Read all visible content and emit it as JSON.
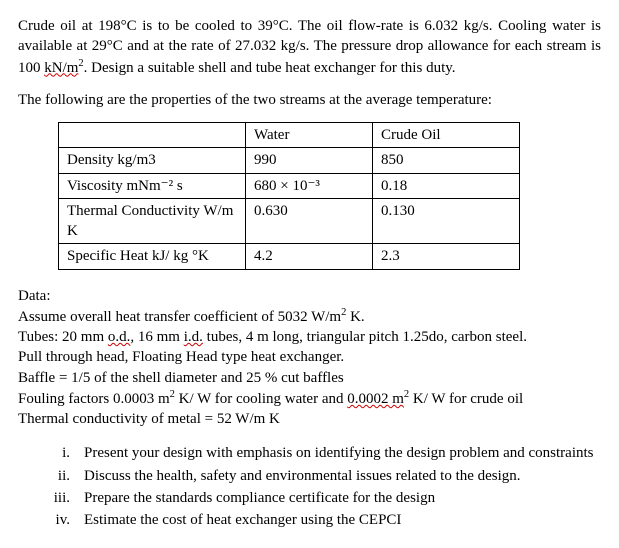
{
  "problem": {
    "p1": "Crude oil at 198°C is to be cooled to 39°C. The oil flow-rate is 6.032 kg/s. Cooling water is available at 29°C and at the rate of 27.032 kg/s. The pressure drop allowance for each stream is 100 ",
    "p1_unit": "kN/m",
    "p1_tail": ". Design a suitable shell and tube heat exchanger for this duty.",
    "p2": "The following are the properties of the two streams at the average temperature:"
  },
  "table": {
    "headers": [
      "",
      "Water",
      "Crude Oil"
    ],
    "rows": [
      [
        "Density kg/m3",
        "990",
        "850"
      ],
      [
        "Viscosity mNm⁻² s",
        "680 × 10⁻³",
        "0.18"
      ],
      [
        "Thermal Conductivity W/m K",
        "0.630",
        "0.130"
      ],
      [
        "Specific Heat kJ/ kg °K",
        "4.2",
        "2.3"
      ]
    ]
  },
  "data": {
    "title": "Data:",
    "lines": [
      {
        "pre": "Assume overall heat transfer coefficient of 5032 W/m",
        "sup": "2",
        "post": " K."
      },
      {
        "pre": "Tubes: 20 mm ",
        "u1": "o.d.",
        "mid": ", 16 mm ",
        "u2": "i.d.",
        "post": " tubes, 4 m long, triangular pitch 1.25do, carbon steel."
      },
      {
        "text": "Pull through head, Floating Head type heat exchanger."
      },
      {
        "text": "Baffle = 1/5 of the shell diameter and 25 % cut baffles"
      },
      {
        "pre": "Fouling factors 0.0003 m",
        "sup": "2",
        "mid": " K/ W for cooling water and ",
        "u1": "0.0002  m",
        "sup2": "2",
        "post": " K/ W for crude oil"
      },
      {
        "text": "Thermal conductivity of metal = 52 W/m K"
      }
    ]
  },
  "questions": [
    {
      "num": "i.",
      "text": "Present your design with emphasis on identifying the design problem and constraints"
    },
    {
      "num": "ii.",
      "text": "Discuss the health, safety and environmental issues related to the design."
    },
    {
      "num": "iii.",
      "text": "Prepare the standards compliance certificate for the design"
    },
    {
      "num": "iv.",
      "text": "Estimate the cost of heat exchanger using the CEPCI"
    }
  ]
}
